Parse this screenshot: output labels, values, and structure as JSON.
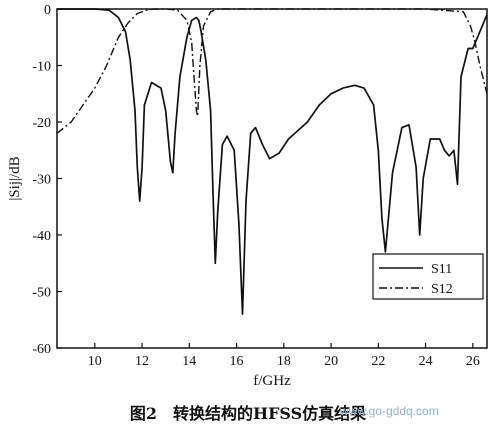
{
  "chart_data": {
    "type": "line",
    "xlabel": "f/GHz",
    "ylabel": "|Sij|/dB",
    "xlim": [
      8.4,
      26.6
    ],
    "ylim": [
      -60,
      0
    ],
    "xticks": [
      10,
      12,
      14,
      16,
      18,
      20,
      22,
      24,
      26
    ],
    "yticks": [
      0,
      -10,
      -20,
      -30,
      -40,
      -50,
      -60
    ],
    "xtick_labels": [
      "10",
      "12",
      "14",
      "16",
      "18",
      "20",
      "22",
      "24",
      "26"
    ],
    "ytick_labels": [
      "0",
      "-10",
      "-20",
      "-30",
      "-40",
      "-50",
      "-60"
    ],
    "grid": false,
    "legend_position": "lower-right",
    "series": [
      {
        "name": "S11",
        "style": "solid",
        "x": [
          8.4,
          10.0,
          10.6,
          11.0,
          11.3,
          11.5,
          11.7,
          11.8,
          11.9,
          12.0,
          12.1,
          12.4,
          12.8,
          13.0,
          13.2,
          13.3,
          13.4,
          13.6,
          13.9,
          14.1,
          14.3,
          14.4,
          14.5,
          14.7,
          14.9,
          15.0,
          15.1,
          15.2,
          15.4,
          15.6,
          15.9,
          16.1,
          16.25,
          16.4,
          16.6,
          16.8,
          17.1,
          17.4,
          17.8,
          18.2,
          18.6,
          19.0,
          19.5,
          20.0,
          20.5,
          21.0,
          21.4,
          21.8,
          22.0,
          22.15,
          22.3,
          22.6,
          23.0,
          23.3,
          23.6,
          23.75,
          23.9,
          24.2,
          24.6,
          24.8,
          25.0,
          25.2,
          25.35,
          25.5,
          25.8,
          26.0,
          26.2,
          26.6
        ],
        "y": [
          0,
          0,
          -0.2,
          -1.5,
          -4,
          -9,
          -18,
          -28,
          -34,
          -28,
          -17,
          -13,
          -14,
          -18,
          -27,
          -29,
          -22,
          -12,
          -5,
          -2,
          -1.5,
          -2,
          -4,
          -9,
          -18,
          -32,
          -45,
          -36,
          -24,
          -22.5,
          -25,
          -38,
          -54,
          -34,
          -22,
          -21,
          -24,
          -26.5,
          -25.5,
          -23,
          -21.5,
          -20,
          -17,
          -15,
          -14,
          -13.5,
          -14,
          -17,
          -25,
          -37,
          -43,
          -29,
          -21,
          -20.5,
          -28,
          -40,
          -30,
          -23,
          -23,
          -25,
          -26,
          -25,
          -31,
          -12,
          -7,
          -7,
          -5,
          -1
        ]
      },
      {
        "name": "S12",
        "style": "dash-dot",
        "x": [
          8.4,
          9.0,
          9.5,
          10.0,
          10.5,
          11.0,
          11.4,
          11.8,
          12.2,
          12.5,
          13.0,
          13.5,
          13.9,
          14.1,
          14.2,
          14.3,
          14.35,
          14.45,
          14.6,
          14.9,
          15.2,
          16,
          18,
          20,
          22,
          24,
          25.6,
          25.9,
          26.1,
          26.3,
          26.6
        ],
        "y": [
          -22,
          -20,
          -17,
          -14,
          -10,
          -5,
          -2.5,
          -0.8,
          -0.2,
          0,
          0,
          -0.2,
          -2,
          -6,
          -12,
          -18,
          -19,
          -10,
          -3,
          -0.5,
          0,
          0,
          0,
          0,
          0,
          0,
          -0.5,
          -3,
          -6,
          -10,
          -15
        ]
      }
    ]
  },
  "caption": "图2　转换结构的HFSS仿真结果",
  "watermark": "www.go-gddq.com"
}
